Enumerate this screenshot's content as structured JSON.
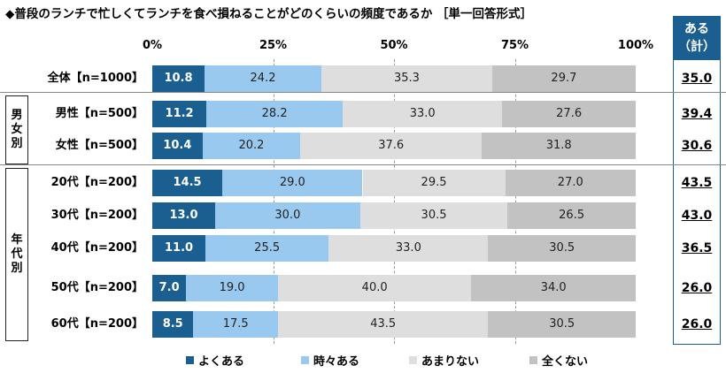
{
  "chart_data": {
    "type": "bar",
    "orientation": "horizontal-stacked-100",
    "title": "◆普段のランチで忙しくてランチを食べ損ねることがどのくらいの頻度であるか ［単一回答形式］",
    "x_ticks": [
      "0%",
      "25%",
      "50%",
      "75%",
      "100%"
    ],
    "xlim": [
      0,
      100
    ],
    "legend_position": "bottom",
    "series": [
      {
        "name": "よくある",
        "color": "#1a5f8f"
      },
      {
        "name": "時々ある",
        "color": "#99c9ef"
      },
      {
        "name": "あまりない",
        "color": "#dedede"
      },
      {
        "name": "全くない",
        "color": "#c2c2c2"
      }
    ],
    "summary_header": [
      "ある",
      "（計）"
    ],
    "groups": [
      {
        "label": "",
        "label_chars": []
      },
      {
        "label": "男女別",
        "label_chars": [
          "男",
          "女",
          "別"
        ]
      },
      {
        "label": "年代別",
        "label_chars": [
          "年",
          "代",
          "別"
        ]
      }
    ],
    "rows": [
      {
        "label": "全体【n=1000】",
        "group": 0,
        "values": [
          10.8,
          24.2,
          35.3,
          29.7
        ],
        "value_labels": [
          "10.8",
          "24.2",
          "35.3",
          "29.7"
        ],
        "aru": "35.0"
      },
      {
        "label": "男性【n=500】",
        "group": 1,
        "values": [
          11.2,
          28.2,
          33.0,
          27.6
        ],
        "value_labels": [
          "11.2",
          "28.2",
          "33.0",
          "27.6"
        ],
        "aru": "39.4"
      },
      {
        "label": "女性【n=500】",
        "group": 1,
        "values": [
          10.4,
          20.2,
          37.6,
          31.8
        ],
        "value_labels": [
          "10.4",
          "20.2",
          "37.6",
          "31.8"
        ],
        "aru": "30.6"
      },
      {
        "label": "20代【n=200】",
        "group": 2,
        "values": [
          14.5,
          29.0,
          29.5,
          27.0
        ],
        "value_labels": [
          "14.5",
          "29.0",
          "29.5",
          "27.0"
        ],
        "aru": "43.5"
      },
      {
        "label": "30代【n=200】",
        "group": 2,
        "values": [
          13.0,
          30.0,
          30.5,
          26.5
        ],
        "value_labels": [
          "13.0",
          "30.0",
          "30.5",
          "26.5"
        ],
        "aru": "43.0"
      },
      {
        "label": "40代【n=200】",
        "group": 2,
        "values": [
          11.0,
          25.5,
          33.0,
          30.5
        ],
        "value_labels": [
          "11.0",
          "25.5",
          "33.0",
          "30.5"
        ],
        "aru": "36.5"
      },
      {
        "label": "50代【n=200】",
        "group": 2,
        "values": [
          7.0,
          19.0,
          40.0,
          34.0
        ],
        "value_labels": [
          "7.0",
          "19.0",
          "40.0",
          "34.0"
        ],
        "aru": "26.0"
      },
      {
        "label": "60代【n=200】",
        "group": 2,
        "values": [
          8.5,
          17.5,
          43.5,
          30.5
        ],
        "value_labels": [
          "8.5",
          "17.5",
          "43.5",
          "30.5"
        ],
        "aru": "26.0"
      }
    ]
  }
}
